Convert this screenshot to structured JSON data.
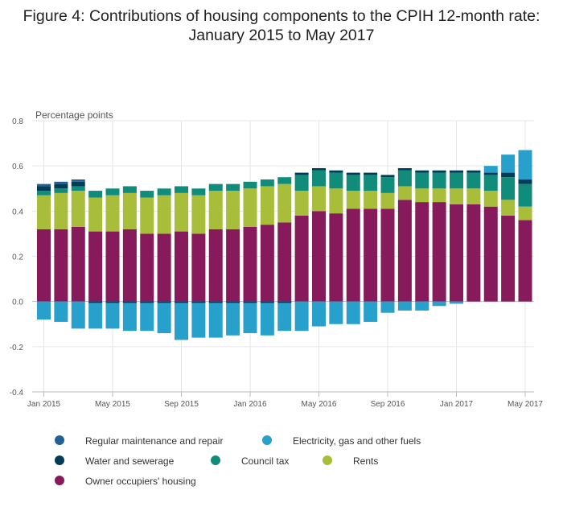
{
  "title_line1": "Figure 4: Contributions of housing components to the CPIH 12-month rate:",
  "title_line2": "January 2015 to May 2017",
  "colors": {
    "maintenance": "#206095",
    "electricity": "#27a0cc",
    "water": "#003c57",
    "council": "#118c7b",
    "rents": "#a8bd3a",
    "owner": "#871a5b"
  },
  "chart_data": {
    "type": "bar",
    "stacked": true,
    "ylabel": "Percentage points",
    "ylim": [
      -0.4,
      0.8
    ],
    "yticks": [
      "0.8",
      "0.6",
      "0.4",
      "0.2",
      "0.0",
      "-0.2",
      "-0.4"
    ],
    "ytick_values": [
      0.8,
      0.6,
      0.4,
      0.2,
      0.0,
      -0.2,
      -0.4
    ],
    "xtick_labels": [
      "Jan 2015",
      "May 2015",
      "Sep 2015",
      "Jan 2016",
      "May 2016",
      "Sep 2016",
      "Jan 2017",
      "May 2017"
    ],
    "xtick_indices": [
      0,
      4,
      8,
      12,
      16,
      20,
      24,
      28
    ],
    "grid": true,
    "legend_position": "bottom",
    "categories": [
      "Jan 2015",
      "Feb 2015",
      "Mar 2015",
      "Apr 2015",
      "May 2015",
      "Jun 2015",
      "Jul 2015",
      "Aug 2015",
      "Sep 2015",
      "Oct 2015",
      "Nov 2015",
      "Dec 2015",
      "Jan 2016",
      "Feb 2016",
      "Mar 2016",
      "Apr 2016",
      "May 2016",
      "Jun 2016",
      "Jul 2016",
      "Aug 2016",
      "Sep 2016",
      "Oct 2016",
      "Nov 2016",
      "Dec 2016",
      "Jan 2017",
      "Feb 2017",
      "Mar 2017",
      "Apr 2017",
      "May 2017"
    ],
    "series": [
      {
        "name": "Owner occupiers' housing",
        "key": "owner",
        "values": [
          0.32,
          0.32,
          0.33,
          0.31,
          0.31,
          0.32,
          0.3,
          0.3,
          0.31,
          0.3,
          0.32,
          0.32,
          0.33,
          0.34,
          0.35,
          0.38,
          0.4,
          0.39,
          0.41,
          0.41,
          0.41,
          0.45,
          0.44,
          0.44,
          0.43,
          0.43,
          0.42,
          0.38,
          0.36
        ]
      },
      {
        "name": "Rents",
        "key": "rents",
        "values": [
          0.15,
          0.16,
          0.16,
          0.15,
          0.16,
          0.16,
          0.16,
          0.17,
          0.17,
          0.17,
          0.17,
          0.17,
          0.17,
          0.17,
          0.17,
          0.11,
          0.11,
          0.11,
          0.08,
          0.08,
          0.07,
          0.06,
          0.06,
          0.06,
          0.07,
          0.07,
          0.07,
          0.07,
          0.06
        ]
      },
      {
        "name": "Council tax",
        "key": "council",
        "values": [
          0.02,
          0.02,
          0.02,
          0.03,
          0.03,
          0.03,
          0.03,
          0.03,
          0.03,
          0.03,
          0.03,
          0.03,
          0.03,
          0.03,
          0.03,
          0.07,
          0.07,
          0.07,
          0.07,
          0.07,
          0.07,
          0.07,
          0.07,
          0.07,
          0.07,
          0.07,
          0.07,
          0.1,
          0.1
        ]
      },
      {
        "name": "Water and sewerage",
        "key": "water",
        "values": [
          0.02,
          0.02,
          0.02,
          0.0,
          0.0,
          0.0,
          0.0,
          0.0,
          0.0,
          0.0,
          0.0,
          0.0,
          0.0,
          0.0,
          0.0,
          0.01,
          0.01,
          0.01,
          0.01,
          0.01,
          0.01,
          0.01,
          0.01,
          0.01,
          0.01,
          0.01,
          0.01,
          0.02,
          0.02
        ]
      },
      {
        "name": "Regular maintenance and repair",
        "key": "maintenance",
        "values": [
          0.01,
          0.01,
          0.01,
          0.0,
          0.0,
          0.0,
          0.0,
          0.0,
          0.0,
          0.0,
          0.0,
          0.0,
          0.0,
          0.0,
          0.0,
          0.0,
          0.0,
          0.0,
          0.0,
          0.0,
          0.0,
          0.0,
          0.0,
          0.0,
          0.0,
          0.0,
          0.0,
          0.0,
          0.0
        ]
      },
      {
        "name": "Electricity, gas and other fuels",
        "key": "electricity",
        "values": [
          -0.08,
          -0.09,
          -0.12,
          -0.12,
          -0.12,
          -0.13,
          -0.13,
          -0.14,
          -0.17,
          -0.16,
          -0.16,
          -0.15,
          -0.14,
          -0.15,
          -0.13,
          -0.13,
          -0.11,
          -0.1,
          -0.1,
          -0.09,
          -0.05,
          -0.04,
          -0.04,
          -0.02,
          -0.01,
          0.0,
          0.03,
          0.08,
          0.13
        ]
      }
    ],
    "negative_maintenance": [
      0,
      0,
      0,
      -0.01,
      -0.01,
      -0.01,
      -0.01,
      -0.01,
      -0.01,
      -0.01,
      -0.01,
      -0.01,
      -0.01,
      -0.01,
      -0.01,
      0,
      0,
      0,
      0,
      0,
      0,
      0,
      0,
      0,
      0,
      0,
      0,
      0,
      0
    ]
  },
  "legend": [
    {
      "label": "Regular maintenance and repair",
      "key": "maintenance"
    },
    {
      "label": "Electricity, gas and other fuels",
      "key": "electricity"
    },
    {
      "label": "Water and sewerage",
      "key": "water"
    },
    {
      "label": "Council tax",
      "key": "council"
    },
    {
      "label": "Rents",
      "key": "rents"
    },
    {
      "label": "Owner occupiers' housing",
      "key": "owner"
    }
  ]
}
